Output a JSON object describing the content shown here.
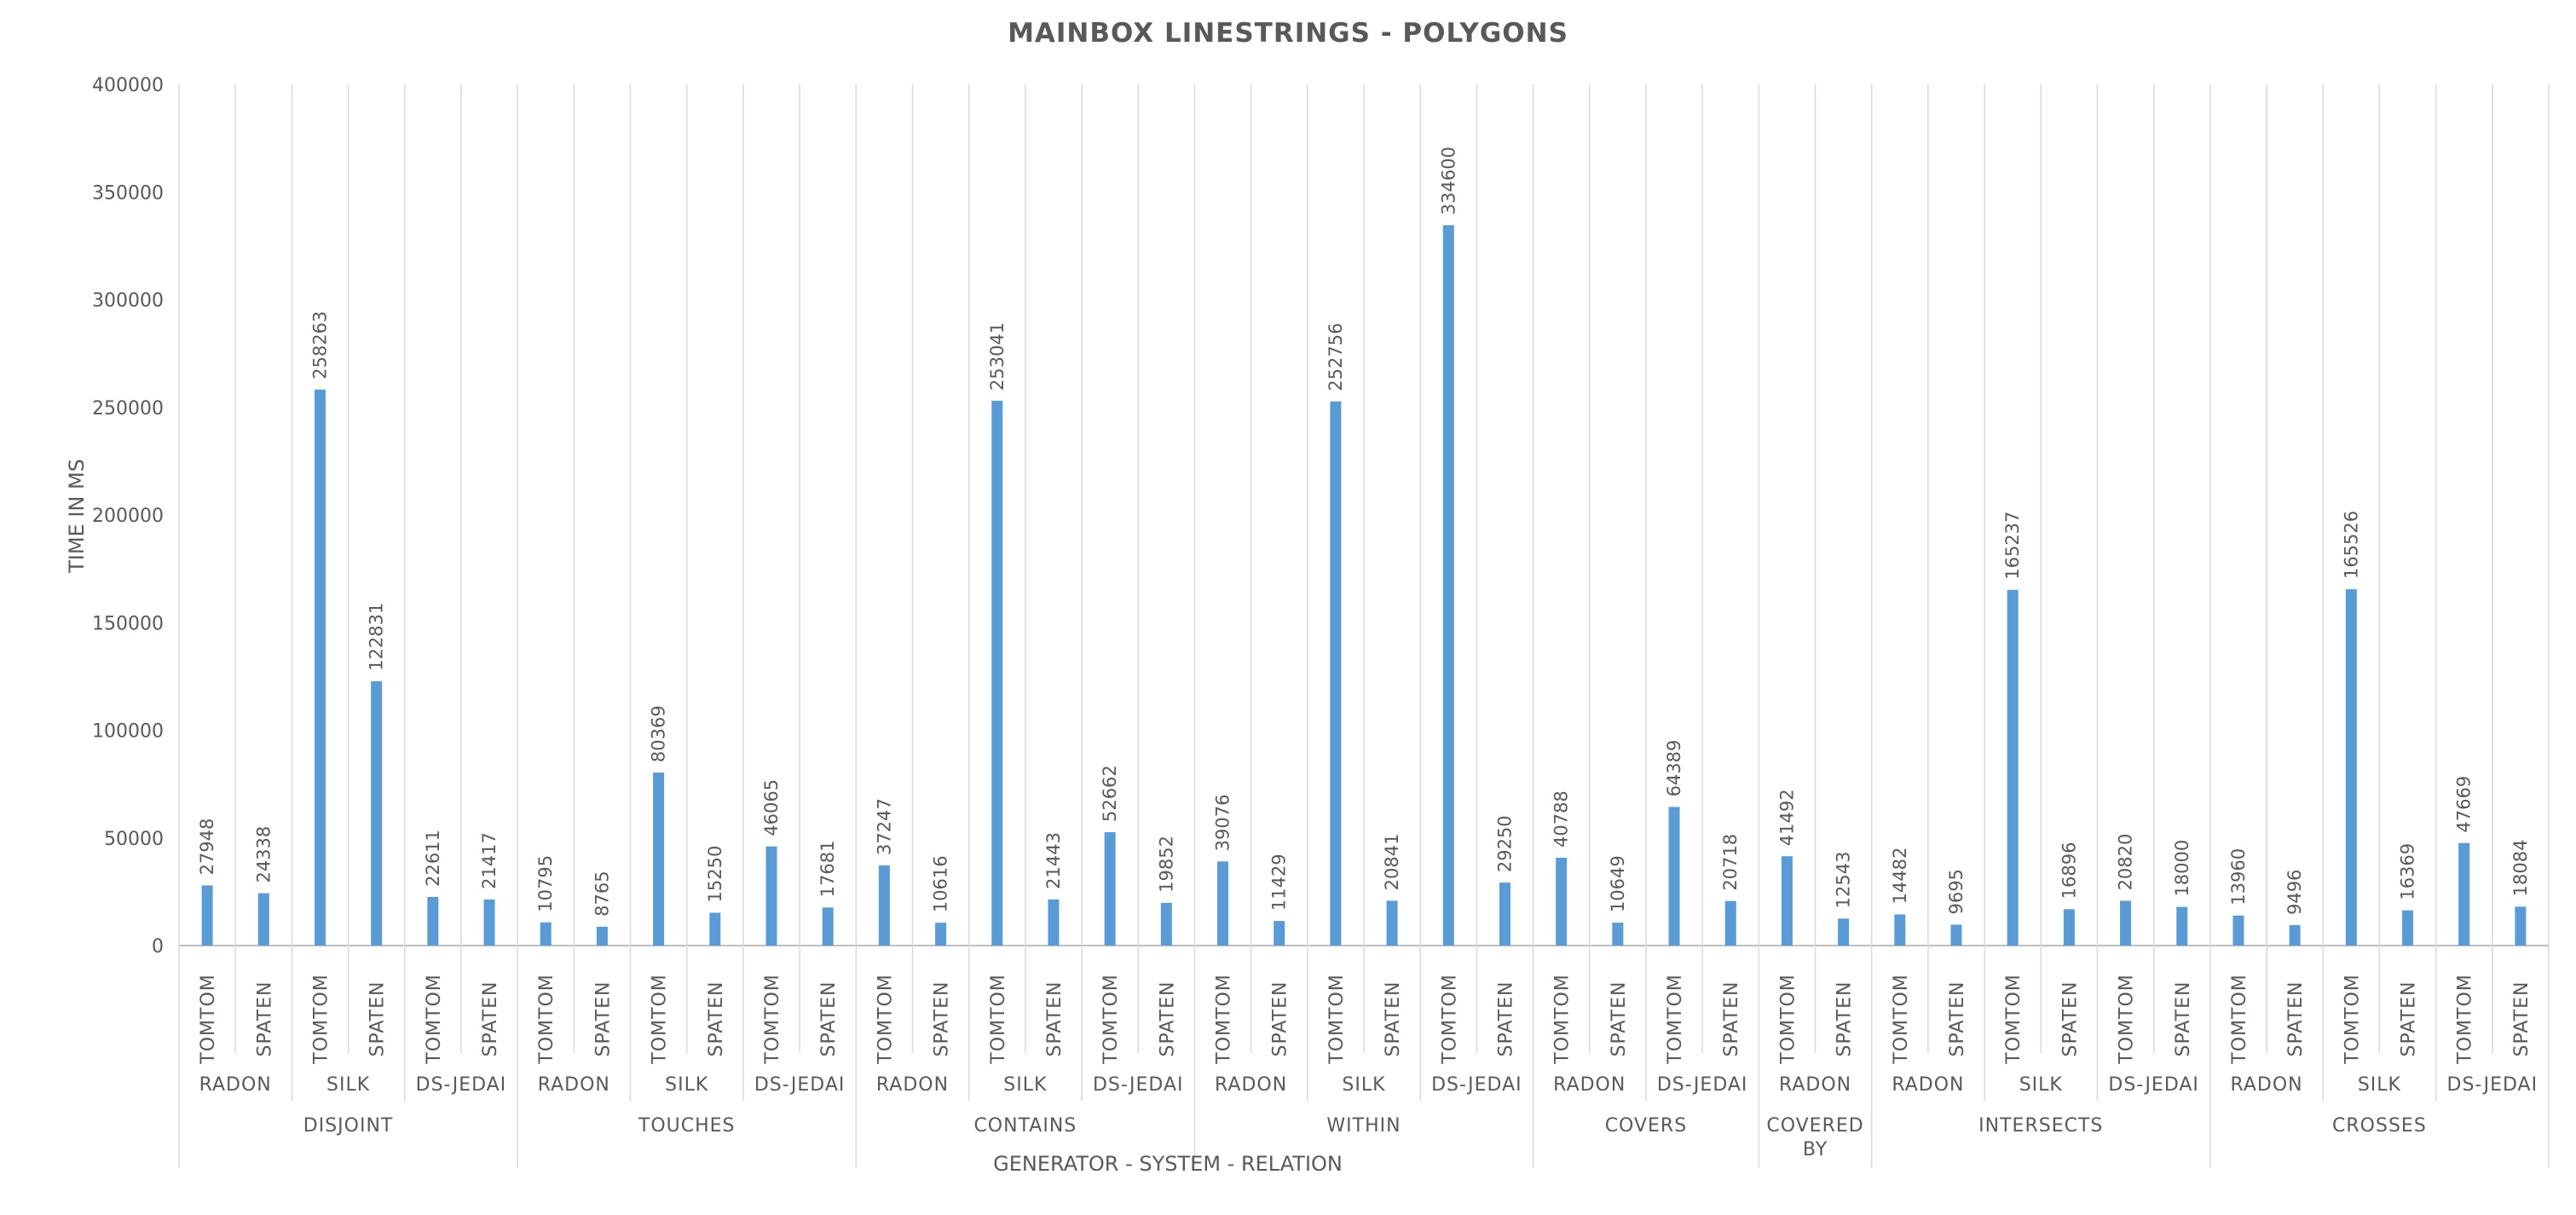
{
  "chart_data": {
    "type": "bar",
    "title": "MAINBOX LINESTRINGS - POLYGONS",
    "xlabel": "GENERATOR - SYSTEM - RELATION",
    "ylabel": "TIME IN MS",
    "ylim": [
      0,
      400000
    ],
    "yticks": [
      0,
      50000,
      100000,
      150000,
      200000,
      250000,
      300000,
      350000,
      400000
    ],
    "grid": "vertical category separators",
    "legend": "none",
    "bar_color": "#5b9bd5",
    "groups": [
      {
        "relation": "DISJOINT",
        "systems": [
          {
            "system": "RADON",
            "bars": [
              {
                "generator": "TOMTOM",
                "value": 27948
              },
              {
                "generator": "SPATEN",
                "value": 24338
              }
            ]
          },
          {
            "system": "SILK",
            "bars": [
              {
                "generator": "TOMTOM",
                "value": 258263
              },
              {
                "generator": "SPATEN",
                "value": 122831
              }
            ]
          },
          {
            "system": "DS-JEDAI",
            "bars": [
              {
                "generator": "TOMTOM",
                "value": 22611
              },
              {
                "generator": "SPATEN",
                "value": 21417
              }
            ]
          }
        ]
      },
      {
        "relation": "TOUCHES",
        "systems": [
          {
            "system": "RADON",
            "bars": [
              {
                "generator": "TOMTOM",
                "value": 10795
              },
              {
                "generator": "SPATEN",
                "value": 8765
              }
            ]
          },
          {
            "system": "SILK",
            "bars": [
              {
                "generator": "TOMTOM",
                "value": 80369
              },
              {
                "generator": "SPATEN",
                "value": 15250
              }
            ]
          },
          {
            "system": "DS-JEDAI",
            "bars": [
              {
                "generator": "TOMTOM",
                "value": 46065
              },
              {
                "generator": "SPATEN",
                "value": 17681
              }
            ]
          }
        ]
      },
      {
        "relation": "CONTAINS",
        "systems": [
          {
            "system": "RADON",
            "bars": [
              {
                "generator": "TOMTOM",
                "value": 37247
              },
              {
                "generator": "SPATEN",
                "value": 10616
              }
            ]
          },
          {
            "system": "SILK",
            "bars": [
              {
                "generator": "TOMTOM",
                "value": 253041
              },
              {
                "generator": "SPATEN",
                "value": 21443
              }
            ]
          },
          {
            "system": "DS-JEDAI",
            "bars": [
              {
                "generator": "TOMTOM",
                "value": 52662
              },
              {
                "generator": "SPATEN",
                "value": 19852
              }
            ]
          }
        ]
      },
      {
        "relation": "WITHIN",
        "systems": [
          {
            "system": "RADON",
            "bars": [
              {
                "generator": "TOMTOM",
                "value": 39076
              },
              {
                "generator": "SPATEN",
                "value": 11429
              }
            ]
          },
          {
            "system": "SILK",
            "bars": [
              {
                "generator": "TOMTOM",
                "value": 252756
              },
              {
                "generator": "SPATEN",
                "value": 20841
              }
            ]
          },
          {
            "system": "DS-JEDAI",
            "bars": [
              {
                "generator": "TOMTOM",
                "value": 334600
              },
              {
                "generator": "SPATEN",
                "value": 29250
              }
            ]
          }
        ]
      },
      {
        "relation": "COVERS",
        "systems": [
          {
            "system": "RADON",
            "bars": [
              {
                "generator": "TOMTOM",
                "value": 40788
              },
              {
                "generator": "SPATEN",
                "value": 10649
              }
            ]
          },
          {
            "system": "DS-JEDAI",
            "bars": [
              {
                "generator": "TOMTOM",
                "value": 64389
              },
              {
                "generator": "SPATEN",
                "value": 20718
              }
            ]
          }
        ]
      },
      {
        "relation": "COVERED BY",
        "systems": [
          {
            "system": "RADON",
            "bars": [
              {
                "generator": "TOMTOM",
                "value": 41492
              },
              {
                "generator": "SPATEN",
                "value": 12543
              }
            ]
          }
        ]
      },
      {
        "relation": "INTERSECTS",
        "systems": [
          {
            "system": "RADON",
            "bars": [
              {
                "generator": "TOMTOM",
                "value": 14482
              },
              {
                "generator": "SPATEN",
                "value": 9695
              }
            ]
          },
          {
            "system": "SILK",
            "bars": [
              {
                "generator": "TOMTOM",
                "value": 165237
              },
              {
                "generator": "SPATEN",
                "value": 16896
              }
            ]
          },
          {
            "system": "DS-JEDAI",
            "bars": [
              {
                "generator": "TOMTOM",
                "value": 20820
              },
              {
                "generator": "SPATEN",
                "value": 18000
              }
            ]
          }
        ]
      },
      {
        "relation": "CROSSES",
        "systems": [
          {
            "system": "RADON",
            "bars": [
              {
                "generator": "TOMTOM",
                "value": 13960
              },
              {
                "generator": "SPATEN",
                "value": 9496
              }
            ]
          },
          {
            "system": "SILK",
            "bars": [
              {
                "generator": "TOMTOM",
                "value": 165526
              },
              {
                "generator": "SPATEN",
                "value": 16369
              }
            ]
          },
          {
            "system": "DS-JEDAI",
            "bars": [
              {
                "generator": "TOMTOM",
                "value": 47669
              },
              {
                "generator": "SPATEN",
                "value": 18084
              }
            ]
          }
        ]
      }
    ]
  }
}
